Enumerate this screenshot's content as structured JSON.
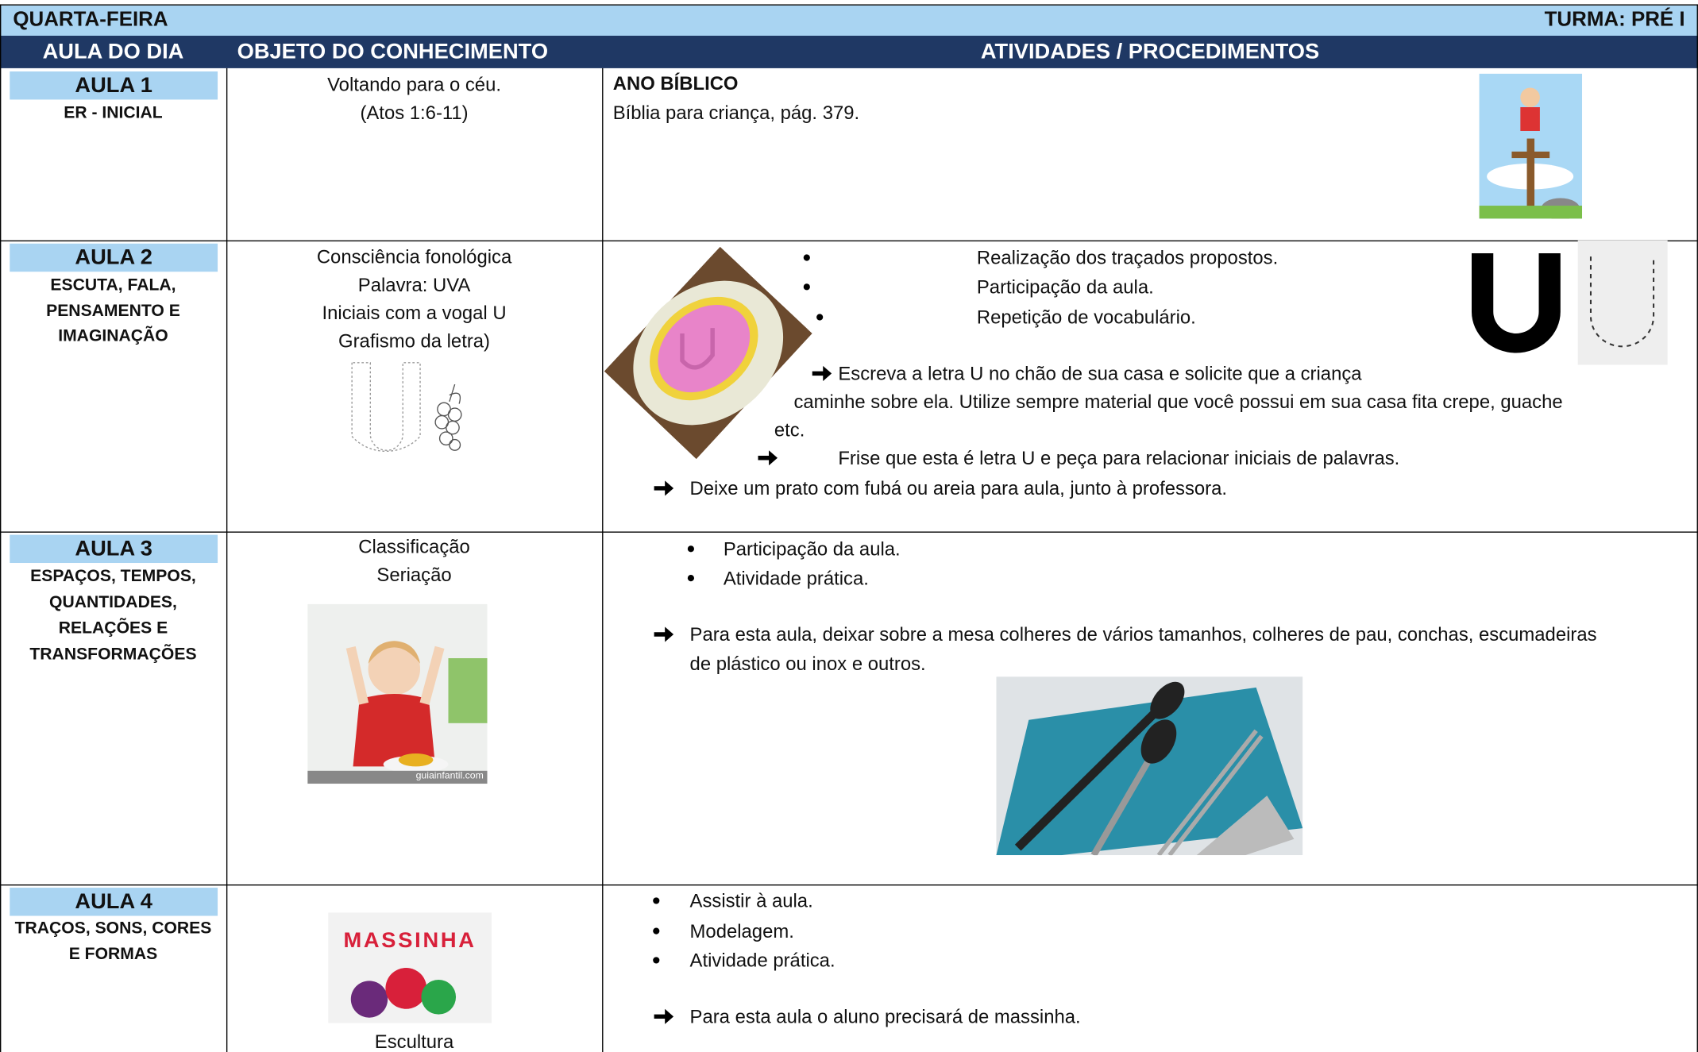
{
  "header": {
    "day": "QUARTA-FEIRA",
    "class": "TURMA: PRÉ I"
  },
  "columns": [
    "AULA DO DIA",
    "OBJETO DO CONHECIMENTO",
    "ATIVIDADES / PROCEDIMENTOS"
  ],
  "rows": [
    {
      "aula": "AULA 1",
      "area": [
        "ER - INICIAL"
      ],
      "objeto": [
        "Voltando para o céu.",
        "(Atos 1:6-11)"
      ],
      "atividades": {
        "heading": "ANO BÍBLICO",
        "text": "Bíblia para criança, pág. 379."
      }
    },
    {
      "aula": "AULA 2",
      "area": [
        "ESCUTA, FALA,",
        "PENSAMENTO E",
        "IMAGINAÇÃO"
      ],
      "objeto": [
        "Consciência fonológica",
        "Palavra: UVA",
        "Iniciais com a vogal U",
        "Grafismo da letra)"
      ],
      "atividades": {
        "bullets": [
          "Realização dos traçados propostos.",
          "Participação da aula.",
          "Repetição de vocabulário."
        ],
        "arrow1": [
          "Escreva a letra U no chão de sua casa e solicite que a criança",
          "caminhe sobre ela. Utilize sempre material que você possui em sua casa fita crepe, guache",
          "etc."
        ],
        "arrow2": "Frise que esta é letra U e peça para relacionar iniciais de palavras.",
        "arrow3": "Deixe um prato com fubá ou areia para aula, junto à professora."
      }
    },
    {
      "aula": "AULA 3",
      "area": [
        "ESPAÇOS, TEMPOS,",
        "QUANTIDADES,",
        "RELAÇÕES E",
        "TRANSFORMAÇÕES"
      ],
      "objeto": [
        "Classificação",
        "Seriação"
      ],
      "image_caption": "guiainfantil.com",
      "atividades": {
        "bullets": [
          "Participação da aula.",
          "Atividade prática."
        ],
        "arrow1": [
          "Para esta aula, deixar sobre a mesa colheres de vários tamanhos, colheres de pau, conchas, escumadeiras",
          "de plástico ou inox e outros."
        ]
      }
    },
    {
      "aula": "AULA 4",
      "area": [
        "TRAÇOS, SONS, CORES",
        "E FORMAS"
      ],
      "image_text": "MASSINHA",
      "objeto": [
        "Escultura"
      ],
      "atividades": {
        "bullets": [
          "Assistir à aula.",
          "Modelagem.",
          "Atividade prática."
        ],
        "arrow1": "Para esta aula o aluno precisará de massinha."
      }
    }
  ]
}
